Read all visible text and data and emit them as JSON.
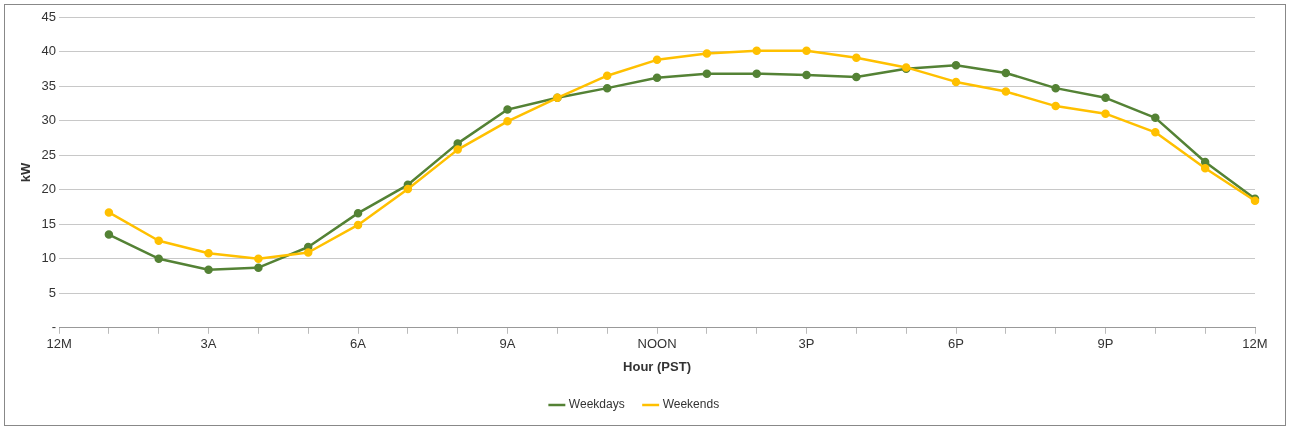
{
  "chart_data": {
    "type": "line",
    "xlabel": "Hour (PST)",
    "ylabel": "kW",
    "categories": [
      "12M",
      null,
      null,
      "3A",
      null,
      null,
      "6A",
      null,
      null,
      "9A",
      null,
      null,
      "NOON",
      null,
      null,
      "3P",
      null,
      null,
      "6P",
      null,
      null,
      "9P",
      null,
      null,
      "12M"
    ],
    "series": [
      {
        "name": "Weekdays",
        "color": "#548235",
        "values": [
          null,
          13.5,
          10.0,
          8.4,
          8.7,
          11.7,
          16.6,
          20.7,
          26.7,
          31.6,
          33.3,
          34.7,
          36.2,
          36.8,
          36.8,
          36.6,
          36.3,
          37.5,
          38.0,
          36.9,
          34.7,
          33.3,
          30.4,
          24.0,
          18.7
        ]
      },
      {
        "name": "Weekends",
        "color": "#ffc000",
        "values": [
          null,
          16.7,
          12.6,
          10.8,
          10.0,
          10.9,
          14.9,
          20.1,
          25.8,
          29.9,
          33.3,
          36.5,
          38.8,
          39.7,
          40.1,
          40.1,
          39.1,
          37.7,
          35.6,
          34.2,
          32.1,
          31.0,
          28.3,
          23.1,
          18.4
        ]
      }
    ],
    "ylim": [
      0,
      45
    ],
    "yticks": [
      {
        "value": 0,
        "label": "-"
      },
      5,
      10,
      15,
      20,
      25,
      30,
      35,
      40,
      45
    ],
    "grid": "y",
    "legend": "bottom",
    "marker": "circle",
    "line_style": "solid"
  }
}
